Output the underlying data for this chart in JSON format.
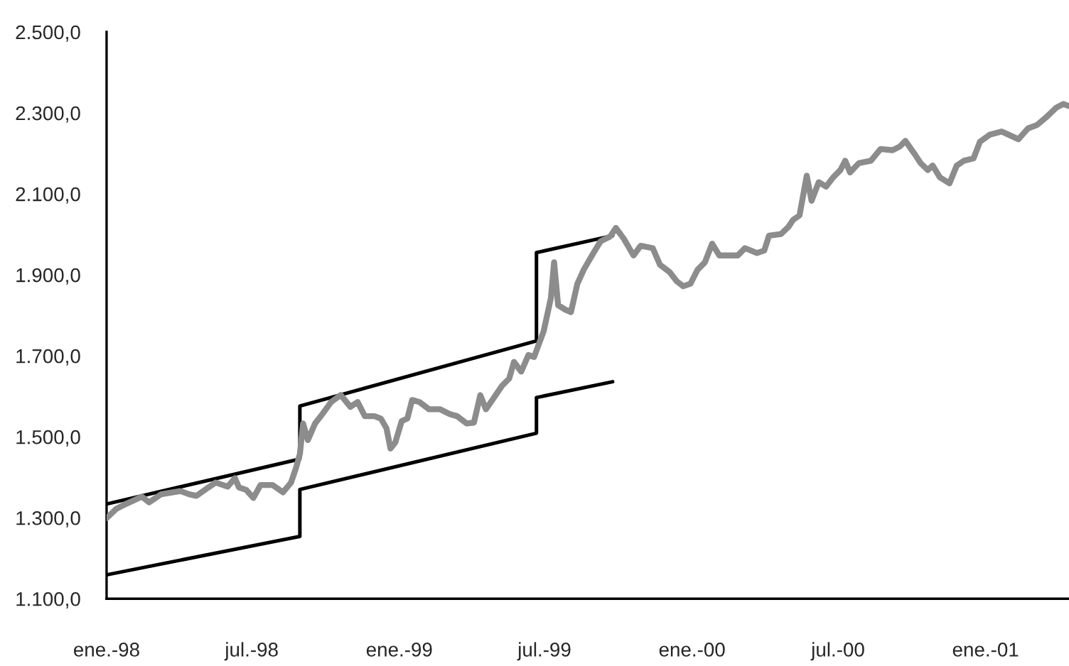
{
  "chart_data": {
    "type": "line",
    "xlim": [
      "1998-01-01",
      "2001-04-15"
    ],
    "xticks": [
      {
        "value": "1998-01-01",
        "label": "ene.-98"
      },
      {
        "value": "1998-07-01",
        "label": "jul.-98"
      },
      {
        "value": "1999-01-01",
        "label": "ene.-99"
      },
      {
        "value": "1999-07-01",
        "label": "jul.-99"
      },
      {
        "value": "2000-01-01",
        "label": "ene.-00"
      },
      {
        "value": "2000-07-01",
        "label": "jul.-00"
      },
      {
        "value": "2001-01-01",
        "label": "ene.-01"
      }
    ],
    "ylim": [
      1100,
      2500
    ],
    "yticks": [
      {
        "value": 1100,
        "label": "1.100,0"
      },
      {
        "value": 1300,
        "label": "1.300,0"
      },
      {
        "value": 1500,
        "label": "1.500,0"
      },
      {
        "value": 1700,
        "label": "1.700,0"
      },
      {
        "value": 1900,
        "label": "1.900,0"
      },
      {
        "value": 2100,
        "label": "2.100,0"
      },
      {
        "value": 2300,
        "label": "2.300,0"
      },
      {
        "value": 2500,
        "label": "2.500,0"
      }
    ],
    "grid": false,
    "legend": false,
    "marker": "none",
    "line_style": "solid",
    "series": [
      {
        "color": "#000000",
        "x": [
          "1998-01-01",
          "1998-08-30",
          "1998-08-30",
          "1999-06-21",
          "1999-06-21",
          "1999-09-24"
        ],
        "values": [
          1334,
          1445,
          1576,
          1737,
          1955,
          1997
        ]
      },
      {
        "color": "#000000",
        "x": [
          "1998-01-01",
          "1998-08-30",
          "1998-08-30",
          "1999-06-21",
          "1999-06-21",
          "1999-09-24"
        ],
        "values": [
          1159,
          1254,
          1370,
          1509,
          1597,
          1636
        ]
      },
      {
        "color": "#8c8c8c",
        "x": [
          "1998-01-01",
          "1998-01-13",
          "1998-01-25",
          "1998-02-14",
          "1998-02-23",
          "1998-03-10",
          "1998-04-03",
          "1998-04-14",
          "1998-04-23",
          "1998-05-08",
          "1998-05-17",
          "1998-06-01",
          "1998-06-10",
          "1998-06-15",
          "1998-06-24",
          "1998-07-03",
          "1998-07-12",
          "1998-07-27",
          "1998-08-09",
          "1998-08-19",
          "1998-08-25",
          "1998-08-30",
          "1998-09-03",
          "1998-09-09",
          "1998-09-18",
          "1998-09-27",
          "1998-10-08",
          "1998-10-20",
          "1998-11-01",
          "1998-11-10",
          "1998-11-19",
          "1998-12-01",
          "1998-12-09",
          "1998-12-16",
          "1998-12-21",
          "1998-12-27",
          "1999-01-04",
          "1999-01-11",
          "1999-01-17",
          "1999-01-26",
          "1999-02-07",
          "1999-02-21",
          "1999-03-05",
          "1999-03-14",
          "1999-03-26",
          "1999-04-04",
          "1999-04-12",
          "1999-04-19",
          "1999-04-27",
          "1999-05-09",
          "1999-05-18",
          "1999-05-24",
          "1999-06-02",
          "1999-06-11",
          "1999-06-18",
          "1999-06-30",
          "1999-07-09",
          "1999-07-13",
          "1999-07-18",
          "1999-07-27",
          "1999-08-03",
          "1999-08-11",
          "1999-08-19",
          "1999-08-31",
          "1999-09-09",
          "1999-09-21",
          "1999-09-28",
          "1999-10-08",
          "1999-10-20",
          "1999-10-29",
          "1999-11-13",
          "1999-11-22",
          "1999-12-04",
          "1999-12-13",
          "1999-12-21",
          "1999-12-30",
          "2000-01-08",
          "2000-01-17",
          "2000-01-26",
          "2000-02-04",
          "2000-02-27",
          "2000-03-07",
          "2000-03-22",
          "2000-03-31",
          "2000-04-06",
          "2000-04-21",
          "2000-04-30",
          "2000-05-06",
          "2000-05-14",
          "2000-05-23",
          "2000-05-29",
          "2000-06-07",
          "2000-06-16",
          "2000-06-25",
          "2000-07-04",
          "2000-07-10",
          "2000-07-16",
          "2000-07-27",
          "2000-08-11",
          "2000-08-23",
          "2000-09-07",
          "2000-09-16",
          "2000-09-23",
          "2000-10-04",
          "2000-10-12",
          "2000-10-21",
          "2000-10-27",
          "2000-11-05",
          "2000-11-17",
          "2000-11-26",
          "2000-12-05",
          "2000-12-17",
          "2000-12-25",
          "2001-01-06",
          "2001-01-21",
          "2001-01-30",
          "2001-02-11",
          "2001-02-23",
          "2001-03-06",
          "2001-03-18",
          "2001-03-30",
          "2001-04-08",
          "2001-04-15"
        ],
        "values": [
          1299,
          1322,
          1334,
          1352,
          1338,
          1358,
          1366,
          1358,
          1354,
          1375,
          1387,
          1377,
          1398,
          1375,
          1369,
          1349,
          1381,
          1381,
          1363,
          1387,
          1422,
          1457,
          1533,
          1492,
          1533,
          1556,
          1586,
          1603,
          1574,
          1586,
          1551,
          1551,
          1545,
          1521,
          1471,
          1486,
          1539,
          1545,
          1591,
          1586,
          1568,
          1568,
          1556,
          1551,
          1533,
          1535,
          1603,
          1568,
          1591,
          1626,
          1644,
          1685,
          1661,
          1702,
          1697,
          1761,
          1843,
          1931,
          1825,
          1814,
          1808,
          1878,
          1913,
          1954,
          1983,
          1995,
          2016,
          1989,
          1948,
          1972,
          1966,
          1925,
          1907,
          1884,
          1872,
          1878,
          1913,
          1931,
          1977,
          1948,
          1948,
          1966,
          1954,
          1960,
          1997,
          2001,
          2018,
          2036,
          2047,
          2145,
          2083,
          2129,
          2118,
          2141,
          2159,
          2182,
          2153,
          2176,
          2182,
          2211,
          2208,
          2217,
          2231,
          2200,
          2176,
          2159,
          2170,
          2141,
          2126,
          2170,
          2182,
          2188,
          2229,
          2246,
          2254,
          2246,
          2235,
          2262,
          2270,
          2290,
          2313,
          2322,
          2317
        ]
      }
    ]
  }
}
